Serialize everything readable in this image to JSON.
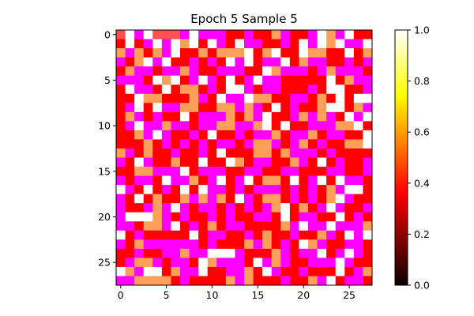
{
  "chart_data": {
    "type": "heatmap",
    "title": "Epoch 5 Sample 5",
    "xlabel": "",
    "ylabel": "",
    "rows": 28,
    "cols": 28,
    "colormap": "hot",
    "clim": [
      0.0,
      1.0
    ],
    "x_ticks": [
      "0",
      "5",
      "10",
      "15",
      "20",
      "25"
    ],
    "y_ticks": [
      "0",
      "5",
      "10",
      "15",
      "20",
      "25"
    ],
    "x_tick_values": [
      0,
      5,
      10,
      15,
      20,
      25
    ],
    "y_tick_values": [
      0,
      5,
      10,
      15,
      20,
      25
    ],
    "colorbar": {
      "range": [
        0.0,
        1.0
      ],
      "ticks": [
        "0.0",
        "0.2",
        "0.4",
        "0.6",
        "0.8",
        "1.0"
      ],
      "tick_values": [
        0.0,
        0.2,
        0.4,
        0.6,
        0.8,
        1.0
      ]
    },
    "cell_colors": {
      "magenta": "#ff00ff",
      "white": "#ffffff",
      "red": "#ff0000",
      "light_orange": "#ff9f5a",
      "salmon": "#ffb093"
    },
    "values": [
      "oWMWoooMWMMMRRMRROMRRMWOMWRR",
      "RWRMWMWOWRWMRWMMRRMRWMWOWMMW",
      "OMOROMWRROROOOWROWRRWOORRWRO",
      "MROWMWRRMRMRWMWRMMWROMMRRMRM",
      "ROMMRMMOMRRMMMRRWOMMMRMOMMMR",
      "MMMRWOWRMWMRWRMWMMRRRRRWROMM",
      "RWMMRWROORMRWWMRMMRRRMRWWRRM",
      "RRWOORRROMRWMMWOORRMMRORWRWW",
      "RMWRWMMOORROOMOMRWRMRROWWROM",
      "ROMRMRRWRMMMOROMWRRMOMOMRWMW",
      "RMWMMOMMRMMOOMMOWRWRRMMMOOWR",
      "RROMWMRRMRWRRMRMMORMMORMMRRW",
      "RRRORMRMRMRMMRMOOMRMORMRROOW",
      "OMRORRMRRMRWRRROOROMMMRMRRRR",
      "MRWMRRORRWRRWORMMRROMRWRMRRM",
      "RROOMMMWRMMMRRMMRRMMRRRMMRRM",
      "MRMMRWMMORMWRMWROORWRMWRWMMR",
      "WMRWRMRWRWMMRMRMMMRMRMROMWWR",
      "MRWRORROMOMORWMROORMRMROWMRR",
      "MRRMOMWMRMMRMRMRMOWRORMWMRRM",
      "MWWWOMRMRRMRMRRMMRWRMMRRWRMR",
      "MMROOMWRMRORMMRRRROMWMMWMMMO",
      "WRMRRRRRWRMMRRMRORRMRROMRWMW",
      "MROMMMMMMRMRRROMORMRWOMRRMMR",
      "RRMRRMMOMMWWWMRRROMRMMWRMWMR",
      "RMOOMRMMRWOMMMRWMOMRRMMMWMRR",
      "WOMWWROMMWRRMMORWMRRMRRRWRMO",
      "MMOOOORMRRRROMORRRMRROMWRMMR"
    ],
    "value_key": {
      "M": "#ff00ff",
      "W": "#ffffff",
      "R": "#ff0000",
      "O": "#ff9f5a",
      "o": "#ff5050"
    }
  }
}
